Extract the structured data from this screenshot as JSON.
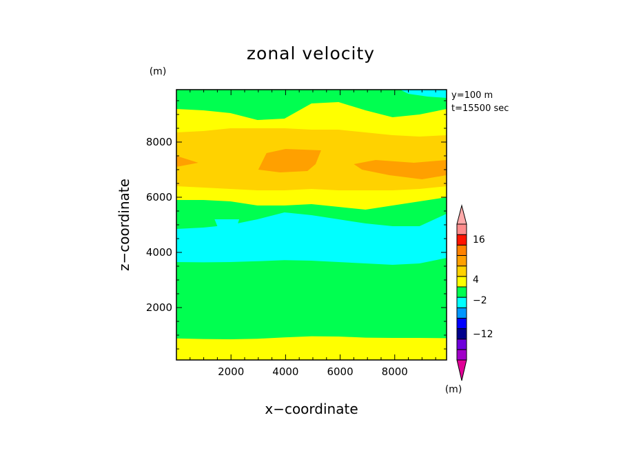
{
  "chart_data": {
    "type": "heatmap",
    "title": "zonal velocity",
    "xlabel": "x−coordinate",
    "ylabel": "z−coordinate",
    "x_unit": "(m)",
    "y_unit": "(m)",
    "colorbar_unit": "(m)",
    "annotation": [
      "y=100 m",
      "t=15500 sec"
    ],
    "xlim": [
      0,
      9900
    ],
    "ylim": [
      100,
      9900
    ],
    "xticks": [
      2000,
      4000,
      6000,
      8000
    ],
    "yticks": [
      2000,
      4000,
      6000,
      8000
    ],
    "colorbar": {
      "levels": [
        {
          "color": "#e10096"
        },
        {
          "color": "#a000c8"
        },
        {
          "color": "#6e00dc"
        },
        {
          "color": "#00008c"
        },
        {
          "color": "#0000ff"
        },
        {
          "color": "#0096ff"
        },
        {
          "color": "#00ffff"
        },
        {
          "color": "#00ff50"
        },
        {
          "color": "#ffff00"
        },
        {
          "color": "#ffd200"
        },
        {
          "color": "#ffa000"
        },
        {
          "color": "#ff8200"
        },
        {
          "color": "#ff1400"
        },
        {
          "color": "#ff8c8c"
        },
        {
          "color": "#ffaaaa"
        }
      ],
      "labels": [
        "16",
        "4",
        "−2",
        "−12"
      ]
    },
    "bands": [
      {
        "color": "#ffff00",
        "bottom": [
          100,
          100,
          100,
          100,
          100,
          100,
          100,
          100,
          100,
          100,
          100
        ]
      },
      {
        "color": "#00ff50",
        "bottom": [
          880,
          860,
          850,
          870,
          920,
          960,
          950,
          910,
          900,
          900,
          890
        ]
      },
      {
        "color": "#00ffff",
        "bottom": [
          3650,
          3640,
          3650,
          3680,
          3720,
          3700,
          3650,
          3600,
          3550,
          3600,
          3800
        ]
      },
      {
        "color": "#00ff50",
        "bottom": [
          4850,
          4900,
          5000,
          5200,
          5450,
          5350,
          5200,
          5050,
          4950,
          4950,
          5400
        ]
      },
      {
        "color": "#ffff00",
        "bottom": [
          5900,
          5900,
          5850,
          5700,
          5700,
          5750,
          5650,
          5550,
          5700,
          5850,
          6000
        ]
      },
      {
        "color": "#ffd200",
        "bottom": [
          6400,
          6350,
          6300,
          6250,
          6250,
          6300,
          6250,
          6250,
          6250,
          6300,
          6400
        ]
      },
      {
        "color": "#ffff00",
        "bottom": [
          8350,
          8400,
          8500,
          8500,
          8500,
          8450,
          8450,
          8350,
          8250,
          8200,
          8250
        ]
      },
      {
        "color": "#00ff50",
        "bottom": [
          9200,
          9150,
          9050,
          8800,
          8850,
          9400,
          9450,
          9150,
          8900,
          9000,
          9200
        ]
      }
    ],
    "patches": [
      {
        "color": "#00ffff",
        "points": [
          [
            1400,
            5200
          ],
          [
            2300,
            5200
          ],
          [
            2200,
            4900
          ],
          [
            1500,
            4950
          ]
        ]
      },
      {
        "color": "#00ffff",
        "points": [
          [
            8200,
            9900
          ],
          [
            9900,
            9900
          ],
          [
            9900,
            9600
          ],
          [
            9200,
            9650
          ],
          [
            8500,
            9750
          ]
        ]
      },
      {
        "color": "#ffa000",
        "points": [
          [
            3000,
            7000
          ],
          [
            3300,
            7600
          ],
          [
            4000,
            7750
          ],
          [
            5300,
            7700
          ],
          [
            5100,
            7200
          ],
          [
            4800,
            6950
          ],
          [
            3800,
            6900
          ]
        ]
      },
      {
        "color": "#ffa000",
        "points": [
          [
            6500,
            7200
          ],
          [
            7300,
            7350
          ],
          [
            8700,
            7250
          ],
          [
            9900,
            7350
          ],
          [
            9900,
            6800
          ],
          [
            9000,
            6650
          ],
          [
            7800,
            6800
          ],
          [
            6800,
            7000
          ]
        ]
      },
      {
        "color": "#ffa000",
        "points": [
          [
            0,
            7500
          ],
          [
            800,
            7250
          ],
          [
            0,
            7100
          ]
        ]
      }
    ]
  }
}
